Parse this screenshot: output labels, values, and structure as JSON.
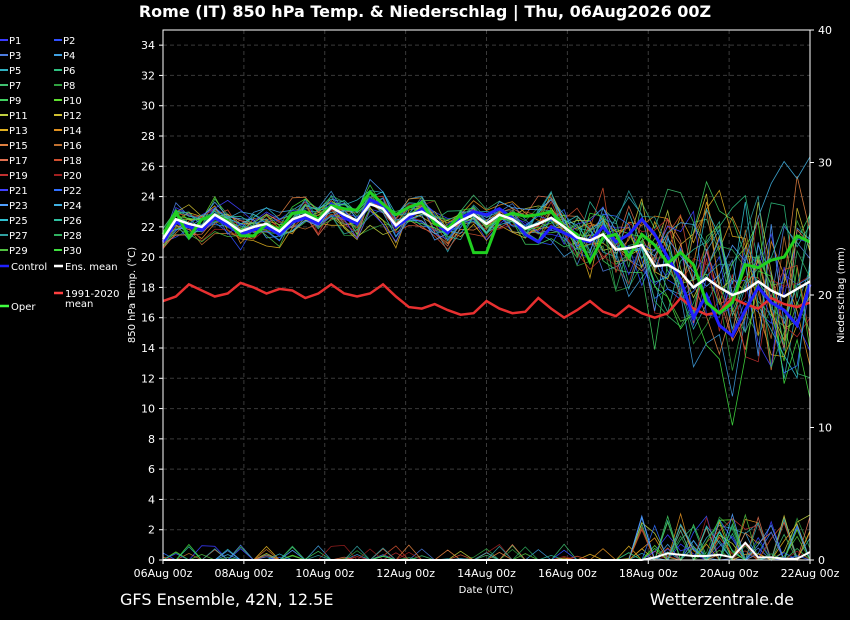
{
  "chart_data": {
    "type": "line",
    "title": "Rome  (IT)  850 hPa Temp. & Niederschlag | Thu, 06Aug2026 00Z",
    "xlabel": "Date (UTC)",
    "ylabel": "850 hPa Temp. (°C)",
    "y2label": "Niederschlag (mm)",
    "ylim": [
      0,
      35
    ],
    "y2lim": [
      0,
      40
    ],
    "xlim_days": [
      0,
      16
    ],
    "x_tick_labels": [
      "06Aug 00z",
      "08Aug 00z",
      "10Aug 00z",
      "12Aug 00z",
      "14Aug 00z",
      "16Aug 00z",
      "18Aug 00z",
      "20Aug 00z",
      "22Aug 00z"
    ],
    "y_tick_labels": [
      "0",
      "2",
      "4",
      "6",
      "8",
      "10",
      "12",
      "14",
      "16",
      "18",
      "20",
      "22",
      "24",
      "26",
      "28",
      "30",
      "32",
      "34"
    ],
    "y2_tick_labels": [
      "0",
      "10",
      "20",
      "30",
      "40"
    ],
    "grid": true,
    "legend_placement": "left",
    "legend": [
      {
        "label": "P1",
        "color": "#3a3aff"
      },
      {
        "label": "P2",
        "color": "#3050ff"
      },
      {
        "label": "P3",
        "color": "#4d7de0"
      },
      {
        "label": "P4",
        "color": "#40a0e0"
      },
      {
        "label": "P5",
        "color": "#30b0c0"
      },
      {
        "label": "P6",
        "color": "#30c080"
      },
      {
        "label": "P7",
        "color": "#40c070"
      },
      {
        "label": "P8",
        "color": "#30a040"
      },
      {
        "label": "P9",
        "color": "#40d060"
      },
      {
        "label": "P10",
        "color": "#60e030"
      },
      {
        "label": "P11",
        "color": "#c0d040"
      },
      {
        "label": "P12",
        "color": "#d0c030"
      },
      {
        "label": "P13",
        "color": "#e0b020"
      },
      {
        "label": "P14",
        "color": "#e09020"
      },
      {
        "label": "P15",
        "color": "#e08040"
      },
      {
        "label": "P16",
        "color": "#c07030"
      },
      {
        "label": "P17",
        "color": "#e07050"
      },
      {
        "label": "P18",
        "color": "#d05030"
      },
      {
        "label": "P19",
        "color": "#c03030"
      },
      {
        "label": "P20",
        "color": "#a02020"
      },
      {
        "label": "P21",
        "color": "#4040ff"
      },
      {
        "label": "P22",
        "color": "#3070ff"
      },
      {
        "label": "P23",
        "color": "#50a0ff"
      },
      {
        "label": "P24",
        "color": "#40b0e0"
      },
      {
        "label": "P25",
        "color": "#30c0d0"
      },
      {
        "label": "P26",
        "color": "#30c0a0"
      },
      {
        "label": "P27",
        "color": "#30a0a0"
      },
      {
        "label": "P28",
        "color": "#30b060"
      },
      {
        "label": "P29",
        "color": "#50c040"
      },
      {
        "label": "P30",
        "color": "#40e040"
      },
      {
        "label": "Control",
        "color": "#2020ff"
      },
      {
        "label": "Ens. mean",
        "color": "#ffffff"
      },
      {
        "label": "Oper",
        "color": "#40ff40"
      },
      {
        "label": "1991-2020 mean",
        "color": "#ff4040"
      }
    ],
    "series": [
      {
        "name": "Ens. mean",
        "role": "mean",
        "color": "#ffffff",
        "values": [
          21.2,
          22.5,
          22.2,
          22.0,
          22.8,
          22.3,
          21.7,
          22.0,
          22.2,
          21.7,
          22.5,
          22.8,
          22.4,
          23.3,
          22.8,
          22.4,
          23.5,
          23.2,
          22.1,
          22.8,
          23.0,
          22.5,
          21.8,
          22.4,
          22.8,
          22.2,
          22.8,
          22.5,
          21.9,
          22.2,
          22.6,
          22.0,
          21.3,
          21.1,
          21.5,
          20.5,
          20.6,
          20.8,
          19.4,
          19.5,
          19.0,
          18.0,
          18.6,
          18.0,
          17.5,
          17.8,
          18.4,
          17.8,
          17.4,
          17.9,
          18.4
        ]
      },
      {
        "name": "Control",
        "role": "control",
        "color": "#2020ff",
        "values": [
          21.0,
          22.3,
          22.0,
          21.8,
          22.6,
          22.1,
          21.5,
          21.8,
          22.0,
          21.5,
          22.3,
          22.6,
          22.2,
          23.5,
          22.6,
          22.2,
          23.8,
          23.4,
          22.0,
          22.6,
          23.2,
          22.3,
          21.6,
          22.6,
          23.0,
          22.8,
          23.2,
          22.6,
          21.5,
          21.0,
          22.0,
          21.6,
          21.2,
          21.0,
          22.0,
          21.0,
          21.5,
          22.5,
          21.5,
          20.0,
          18.5,
          16.0,
          17.5,
          15.5,
          14.8,
          16.5,
          18.0,
          17.0,
          16.5,
          15.5,
          18.2
        ]
      },
      {
        "name": "Oper",
        "role": "oper",
        "color": "#20d020",
        "values": [
          21.5,
          23.0,
          21.3,
          22.5,
          22.8,
          22.4,
          21.4,
          21.4,
          22.2,
          21.8,
          22.9,
          23.0,
          22.5,
          23.4,
          23.2,
          23.1,
          24.3,
          23.5,
          22.8,
          23.3,
          23.6,
          22.2,
          21.9,
          22.8,
          20.3,
          20.3,
          22.6,
          22.9,
          22.7,
          22.8,
          23.0,
          22.0,
          21.5,
          19.7,
          21.3,
          21.5,
          20.0,
          21.5,
          20.8,
          19.6,
          20.3,
          19.5,
          17.0,
          16.3,
          17.0,
          19.5,
          19.3,
          19.8,
          20.0,
          21.4,
          21.0
        ]
      },
      {
        "name": "1991-2020 mean",
        "role": "climate",
        "color": "#e83030",
        "values": [
          17.1,
          17.4,
          18.2,
          17.8,
          17.4,
          17.6,
          18.3,
          18.0,
          17.6,
          17.9,
          17.8,
          17.3,
          17.6,
          18.2,
          17.6,
          17.4,
          17.6,
          18.2,
          17.4,
          16.7,
          16.6,
          16.9,
          16.5,
          16.2,
          16.3,
          17.1,
          16.6,
          16.3,
          16.4,
          17.3,
          16.6,
          16.0,
          16.5,
          17.1,
          16.4,
          16.1,
          16.8,
          16.3,
          16.0,
          16.3,
          17.3,
          16.6,
          16.2,
          16.4,
          17.3,
          16.9,
          16.6,
          17.3,
          16.9,
          16.7,
          17.0
        ]
      }
    ],
    "precip_mean_mm": [
      0,
      0,
      0,
      0,
      0,
      0,
      0,
      0,
      0,
      0,
      0,
      0,
      0,
      0,
      0,
      0,
      0,
      0,
      0,
      0,
      0,
      0,
      0,
      0,
      0,
      0,
      0,
      0,
      0,
      0,
      0,
      0,
      0,
      0,
      0,
      0,
      0,
      0,
      0.2,
      0.5,
      0.4,
      0.3,
      0.3,
      0.4,
      0.2,
      1.3,
      0.2,
      0.2,
      0.1,
      0.1,
      0.6
    ]
  },
  "footer": {
    "left": "GFS Ensemble, 42N, 12.5E",
    "right": "Wetterzentrale.de"
  }
}
